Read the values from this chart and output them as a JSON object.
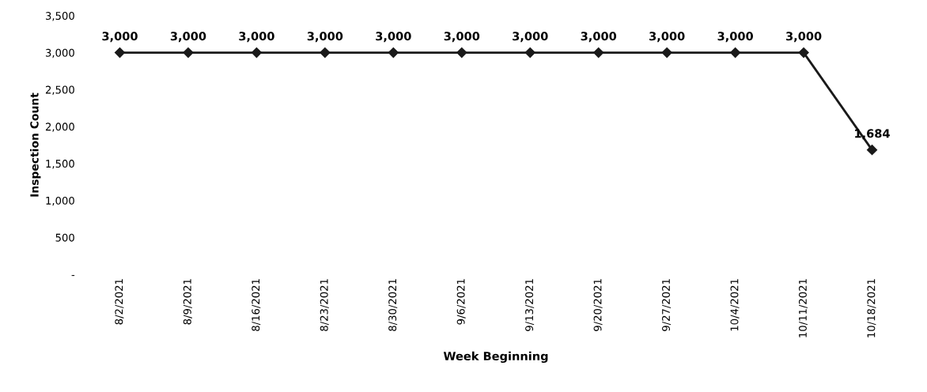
{
  "chart_data": {
    "type": "line",
    "xlabel": "Week Beginning",
    "ylabel": "Inspection Count",
    "categories": [
      "8/2/2021",
      "8/9/2021",
      "8/16/2021",
      "8/23/2021",
      "8/30/2021",
      "9/6/2021",
      "9/13/2021",
      "9/20/2021",
      "9/27/2021",
      "10/4/2021",
      "10/11/2021",
      "10/18/2021"
    ],
    "series": [
      {
        "color": "#1a1a1a",
        "values": [
          3000,
          3000,
          3000,
          3000,
          3000,
          3000,
          3000,
          3000,
          3000,
          3000,
          3000,
          1684
        ],
        "value_labels": [
          "3,000",
          "3,000",
          "3,000",
          "3,000",
          "3,000",
          "3,000",
          "3,000",
          "3,000",
          "3,000",
          "3,000",
          "3,000",
          "1,684"
        ]
      }
    ],
    "ylim": [
      0,
      3500
    ],
    "yticks": [
      {
        "value": 0,
        "label": "-"
      },
      {
        "value": 500,
        "label": "500"
      },
      {
        "value": 1000,
        "label": "1,000"
      },
      {
        "value": 1500,
        "label": "1,500"
      },
      {
        "value": 2000,
        "label": "2,000"
      },
      {
        "value": 2500,
        "label": "2,500"
      },
      {
        "value": 3000,
        "label": "3,000"
      },
      {
        "value": 3500,
        "label": "3,500"
      }
    ],
    "marker": "diamond",
    "line_style": "solid",
    "grid": false,
    "legend": false
  }
}
